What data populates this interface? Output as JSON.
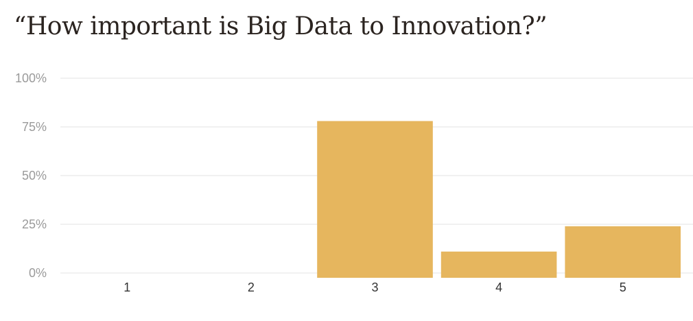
{
  "chart_data": {
    "type": "bar",
    "title": "“How important is Big Data to Innovation?”",
    "categories": [
      "1",
      "2",
      "3",
      "4",
      "5"
    ],
    "values": [
      0,
      0,
      78,
      11,
      24
    ],
    "yticks": [
      "0%",
      "25%",
      "50%",
      "75%",
      "100%"
    ],
    "ylim": [
      0,
      100
    ],
    "xlabel": "",
    "ylabel": "",
    "grid": true,
    "bar_color": "#E6B65E"
  }
}
